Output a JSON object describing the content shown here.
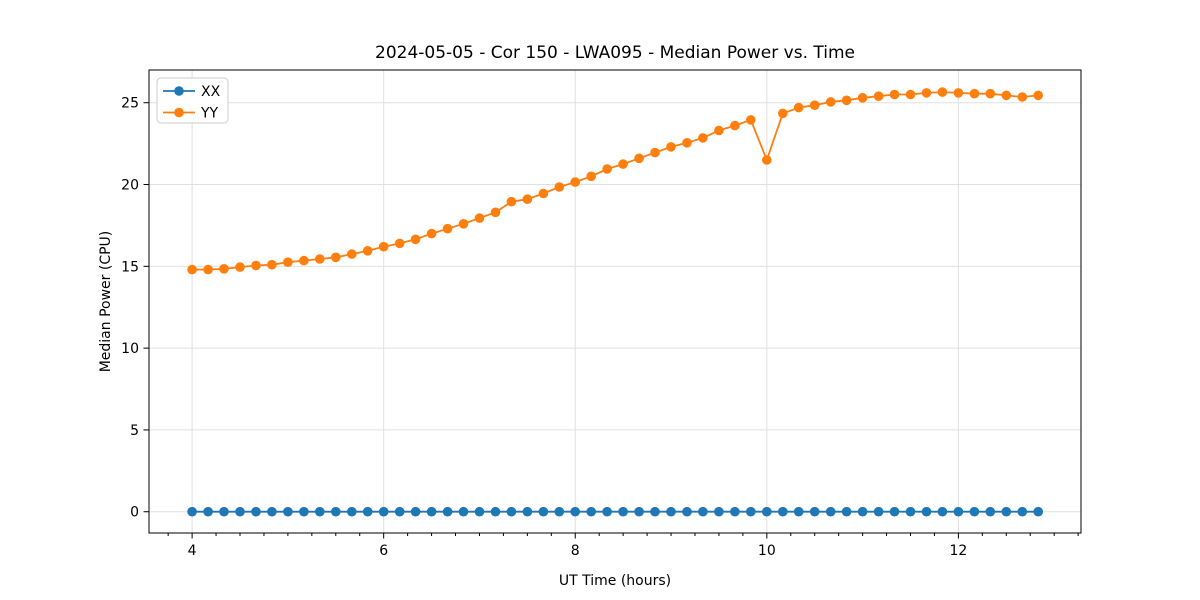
{
  "chart_data": {
    "type": "line",
    "title": "2024-05-05 - Cor 150 - LWA095 - Median Power vs. Time",
    "xlabel": "UT Time (hours)",
    "ylabel": "Median Power (CPU)",
    "xlim": [
      3.55,
      13.28
    ],
    "ylim": [
      -1.3,
      27.0
    ],
    "x_major_ticks": [
      4,
      6,
      8,
      10,
      12
    ],
    "x_tick_labels": [
      "4",
      "6",
      "8",
      "10",
      "12"
    ],
    "x_minor_step": 0.25,
    "y_major_ticks": [
      0,
      5,
      10,
      15,
      20,
      25
    ],
    "y_tick_labels": [
      "0",
      "5",
      "10",
      "15",
      "20",
      "25"
    ],
    "grid": true,
    "legend_position": "upper left",
    "x": [
      4.0,
      4.167,
      4.333,
      4.5,
      4.667,
      4.833,
      5.0,
      5.167,
      5.333,
      5.5,
      5.667,
      5.833,
      6.0,
      6.167,
      6.333,
      6.5,
      6.667,
      6.833,
      7.0,
      7.167,
      7.333,
      7.5,
      7.667,
      7.833,
      8.0,
      8.167,
      8.333,
      8.5,
      8.667,
      8.833,
      9.0,
      9.167,
      9.333,
      9.5,
      9.667,
      9.833,
      10.0,
      10.167,
      10.333,
      10.5,
      10.667,
      10.833,
      11.0,
      11.167,
      11.333,
      11.5,
      11.667,
      11.833,
      12.0,
      12.167,
      12.333,
      12.5,
      12.667,
      12.833
    ],
    "series": [
      {
        "name": "XX",
        "color": "#1f77b4",
        "values": [
          0,
          0,
          0,
          0,
          0,
          0,
          0,
          0,
          0,
          0,
          0,
          0,
          0,
          0,
          0,
          0,
          0,
          0,
          0,
          0,
          0,
          0,
          0,
          0,
          0,
          0,
          0,
          0,
          0,
          0,
          0,
          0,
          0,
          0,
          0,
          0,
          0,
          0,
          0,
          0,
          0,
          0,
          0,
          0,
          0,
          0,
          0,
          0,
          0,
          0,
          0,
          0,
          0,
          0
        ]
      },
      {
        "name": "YY",
        "color": "#ff7f0e",
        "values": [
          14.8,
          14.8,
          14.85,
          14.95,
          15.05,
          15.1,
          15.25,
          15.35,
          15.45,
          15.55,
          15.75,
          15.95,
          16.2,
          16.4,
          16.65,
          17.0,
          17.3,
          17.6,
          17.95,
          18.3,
          18.95,
          19.1,
          19.45,
          19.85,
          20.15,
          20.5,
          20.95,
          21.25,
          21.6,
          21.95,
          22.3,
          22.55,
          22.85,
          23.3,
          23.6,
          23.95,
          21.5,
          24.35,
          24.7,
          24.85,
          25.05,
          25.15,
          25.3,
          25.4,
          25.5,
          25.5,
          25.6,
          25.65,
          25.6,
          25.55,
          25.55,
          25.45,
          25.35,
          25.45
        ]
      }
    ],
    "style": {
      "grid_color": "#e0e0e0",
      "spine_color": "#000000",
      "tick_color": "#000000",
      "background": "#ffffff",
      "marker_radius": 4.8,
      "line_width": 1.8
    },
    "legend": {
      "entries": [
        "XX",
        "YY"
      ],
      "border_color": "#cccccc",
      "background": "#ffffff"
    }
  }
}
